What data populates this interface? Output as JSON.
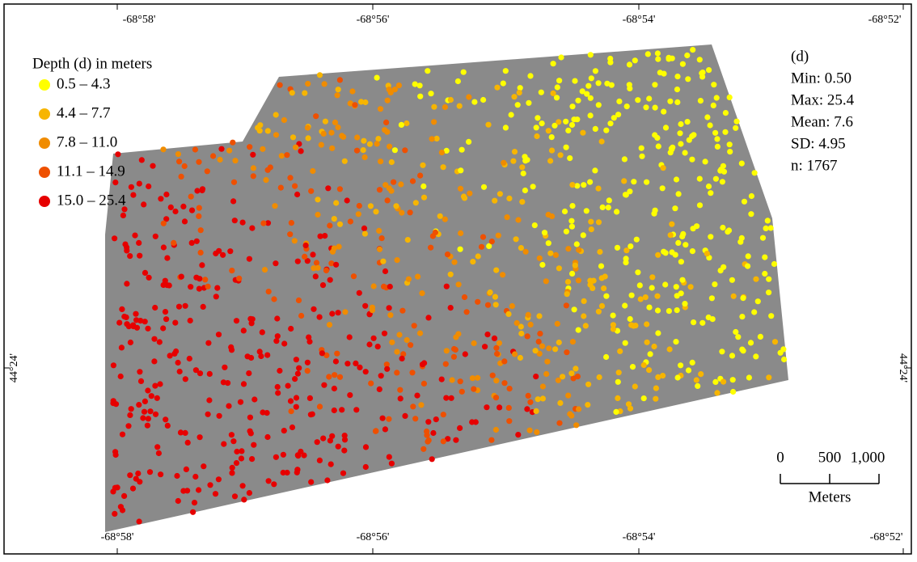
{
  "legend": {
    "title": "Depth (d) in meters",
    "items": [
      {
        "label": "0.5 – 4.3",
        "color": "#ffff00"
      },
      {
        "label": "4.4 – 7.7",
        "color": "#f7b500"
      },
      {
        "label": "7.8 – 11.0",
        "color": "#f08c00"
      },
      {
        "label": "11.1 – 14.9",
        "color": "#ee5000"
      },
      {
        "label": "15.0 – 25.4",
        "color": "#e60000"
      }
    ]
  },
  "stats": {
    "title": "(d)",
    "lines": [
      "Min: 0.50",
      "Max: 25.4",
      "Mean: 7.6",
      "SD: 4.95",
      "n: 1767"
    ]
  },
  "graticule": {
    "top": [
      "-68°58'",
      "-68°56'",
      "-68°54'",
      "-68°52'"
    ],
    "bottom": [
      "-68°58'",
      "-68°56'",
      "-68°54'",
      "-68°52'"
    ],
    "left": "44°24'",
    "right": "44°24'"
  },
  "scale_bar": {
    "ticks": [
      "0",
      "500",
      "1,000"
    ],
    "unit": "Meters"
  }
}
